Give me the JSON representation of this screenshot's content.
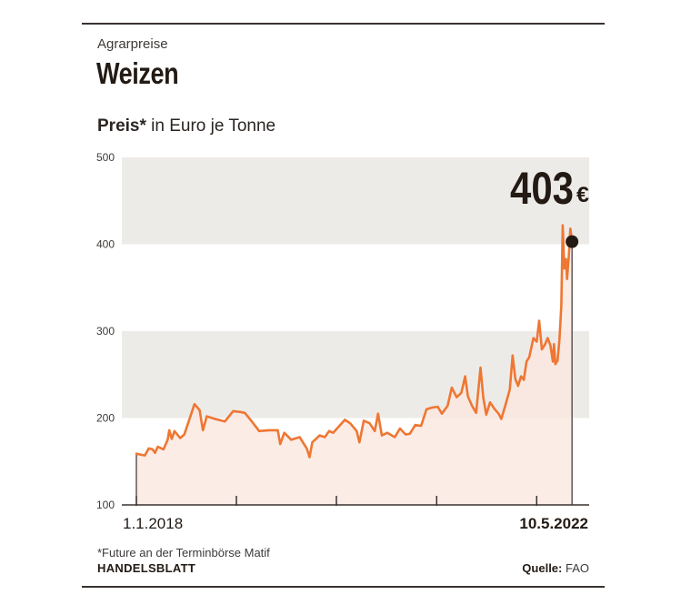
{
  "header": {
    "kicker": "Agrarpreise",
    "title": "Weizen",
    "subtitle_bold": "Preis*",
    "subtitle_rest": " in Euro je Tonne"
  },
  "footer": {
    "footnote": "*Future an der Terminbörse Matif",
    "brand": "HANDELSBLATT",
    "source_label": "Quelle:",
    "source_value": " FAO"
  },
  "chart_data": {
    "type": "area",
    "ylim": [
      100,
      500
    ],
    "yticks": [
      "100",
      "200",
      "300",
      "400",
      "500"
    ],
    "x_start_label": "1.1.2018",
    "x_end_label": "10.5.2022",
    "xlim": [
      "2018-01-01",
      "2022-06-15"
    ],
    "latest_value_number": "403",
    "latest_value_unit": "€",
    "latest_value": 403,
    "colors": {
      "line": "#ee7733",
      "area": "#fbe7df",
      "band": "#edebe8",
      "marker": "#231a14"
    },
    "series": [
      {
        "points": [
          [
            "2018-01-01",
            159
          ],
          [
            "2018-01-15",
            158
          ],
          [
            "2018-02-01",
            157
          ],
          [
            "2018-02-15",
            165
          ],
          [
            "2018-03-01",
            164
          ],
          [
            "2018-03-10",
            160
          ],
          [
            "2018-03-20",
            167
          ],
          [
            "2018-04-10",
            164
          ],
          [
            "2018-04-25",
            175
          ],
          [
            "2018-05-01",
            186
          ],
          [
            "2018-05-10",
            176
          ],
          [
            "2018-05-20",
            185
          ],
          [
            "2018-06-10",
            177
          ],
          [
            "2018-06-25",
            181
          ],
          [
            "2018-07-15",
            200
          ],
          [
            "2018-08-01",
            216
          ],
          [
            "2018-08-20",
            209
          ],
          [
            "2018-09-01",
            186
          ],
          [
            "2018-09-15",
            202
          ],
          [
            "2018-10-15",
            199
          ],
          [
            "2018-11-20",
            196
          ],
          [
            "2018-12-20",
            208
          ],
          [
            "2019-01-15",
            207
          ],
          [
            "2019-02-01",
            206
          ],
          [
            "2019-03-01",
            195
          ],
          [
            "2019-03-25",
            185
          ],
          [
            "2019-05-01",
            186
          ],
          [
            "2019-06-01",
            186
          ],
          [
            "2019-06-10",
            170
          ],
          [
            "2019-06-25",
            183
          ],
          [
            "2019-07-20",
            175
          ],
          [
            "2019-08-20",
            178
          ],
          [
            "2019-09-15",
            165
          ],
          [
            "2019-09-25",
            155
          ],
          [
            "2019-10-05",
            172
          ],
          [
            "2019-11-01",
            180
          ],
          [
            "2019-11-20",
            178
          ],
          [
            "2019-12-05",
            185
          ],
          [
            "2019-12-20",
            183
          ],
          [
            "2020-01-15",
            192
          ],
          [
            "2020-02-01",
            198
          ],
          [
            "2020-02-20",
            194
          ],
          [
            "2020-03-15",
            185
          ],
          [
            "2020-03-25",
            172
          ],
          [
            "2020-04-10",
            197
          ],
          [
            "2020-05-01",
            194
          ],
          [
            "2020-05-20",
            185
          ],
          [
            "2020-06-01",
            205
          ],
          [
            "2020-06-15",
            180
          ],
          [
            "2020-07-05",
            183
          ],
          [
            "2020-08-01",
            178
          ],
          [
            "2020-08-20",
            188
          ],
          [
            "2020-09-10",
            181
          ],
          [
            "2020-09-25",
            182
          ],
          [
            "2020-10-15",
            192
          ],
          [
            "2020-11-05",
            191
          ],
          [
            "2020-11-25",
            210
          ],
          [
            "2020-12-15",
            212
          ],
          [
            "2021-01-05",
            213
          ],
          [
            "2021-01-20",
            205
          ],
          [
            "2021-02-10",
            214
          ],
          [
            "2021-02-25",
            235
          ],
          [
            "2021-03-15",
            224
          ],
          [
            "2021-04-01",
            229
          ],
          [
            "2021-04-15",
            248
          ],
          [
            "2021-04-25",
            225
          ],
          [
            "2021-05-10",
            214
          ],
          [
            "2021-05-25",
            206
          ],
          [
            "2021-06-10",
            258
          ],
          [
            "2021-06-20",
            224
          ],
          [
            "2021-07-01",
            204
          ],
          [
            "2021-07-15",
            218
          ],
          [
            "2021-08-01",
            210
          ],
          [
            "2021-08-15",
            205
          ],
          [
            "2021-08-25",
            199
          ],
          [
            "2021-09-10",
            216
          ],
          [
            "2021-09-25",
            233
          ],
          [
            "2021-10-05",
            272
          ],
          [
            "2021-10-15",
            245
          ],
          [
            "2021-10-25",
            237
          ],
          [
            "2021-11-05",
            248
          ],
          [
            "2021-11-15",
            244
          ],
          [
            "2021-11-25",
            265
          ],
          [
            "2021-12-05",
            270
          ],
          [
            "2021-12-20",
            292
          ],
          [
            "2022-01-01",
            288
          ],
          [
            "2022-01-10",
            312
          ],
          [
            "2022-01-20",
            279
          ],
          [
            "2022-02-01",
            285
          ],
          [
            "2022-02-10",
            292
          ],
          [
            "2022-02-20",
            284
          ],
          [
            "2022-03-01",
            265
          ],
          [
            "2022-03-05",
            285
          ],
          [
            "2022-03-10",
            262
          ],
          [
            "2022-03-18",
            266
          ],
          [
            "2022-03-25",
            290
          ],
          [
            "2022-04-01",
            330
          ],
          [
            "2022-04-06",
            422
          ],
          [
            "2022-04-12",
            372
          ],
          [
            "2022-04-18",
            383
          ],
          [
            "2022-04-22",
            360
          ],
          [
            "2022-04-28",
            385
          ],
          [
            "2022-05-04",
            418
          ],
          [
            "2022-05-10",
            403
          ]
        ]
      }
    ]
  }
}
